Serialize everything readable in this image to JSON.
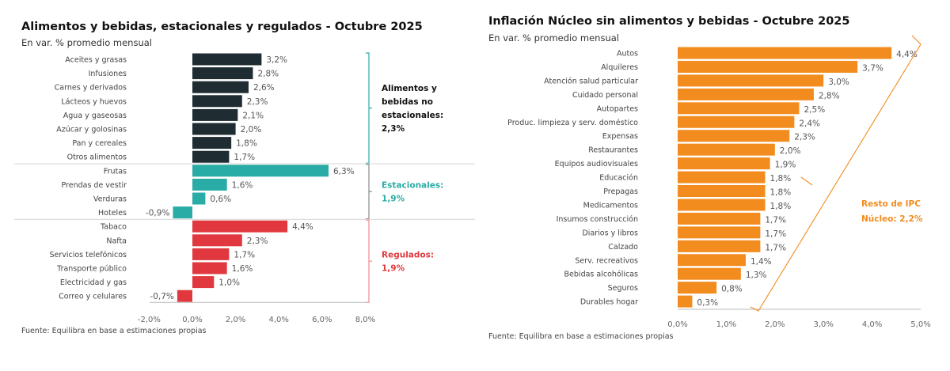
{
  "chart_data": [
    {
      "type": "bar",
      "orientation": "horizontal",
      "title": "Alimentos y bebidas, estacionales y regulados - Octubre 2025",
      "subtitle": "En var. % promedio mensual",
      "source": "Fuente: Equilibra en base a estimaciones propias",
      "xlim": [
        -2,
        8
      ],
      "xticks": [
        "-2,0%",
        "0,0%",
        "2,0%",
        "4,0%",
        "6,0%",
        "8,0%"
      ],
      "groups": [
        {
          "label_lines": [
            "Alimentos y",
            "bebidas no",
            "estacionales:",
            "2,3%"
          ],
          "color": "#1f2d33",
          "annotation_color": "#111111",
          "bracket_color": "#2aaca6",
          "categories": [
            "Aceites y grasas",
            "Infusiones",
            "Carnes y derivados",
            "Lácteos y huevos",
            "Agua y gaseosas",
            "Azúcar y golosinas",
            "Pan y cereales",
            "Otros alimentos"
          ],
          "values": [
            3.2,
            2.8,
            2.6,
            2.3,
            2.1,
            2.0,
            1.8,
            1.7
          ],
          "labels": [
            "3,2%",
            "2,8%",
            "2,6%",
            "2,3%",
            "2,1%",
            "2,0%",
            "1,8%",
            "1,7%"
          ]
        },
        {
          "label_lines": [
            "Estacionales:",
            "1,9%"
          ],
          "color": "#2aaca6",
          "annotation_color": "#2aaca6",
          "bracket_color": "#888888",
          "categories": [
            "Frutas",
            "Prendas de vestir",
            "Verduras",
            "Hoteles"
          ],
          "values": [
            6.3,
            1.6,
            0.6,
            -0.9
          ],
          "labels": [
            "6,3%",
            "1,6%",
            "0,6%",
            "-0,9%"
          ]
        },
        {
          "label_lines": [
            "Regulados:",
            "1,9%"
          ],
          "color": "#e0383e",
          "annotation_color": "#e0383e",
          "bracket_color": "#f08a8c",
          "categories": [
            "Tabaco",
            "Nafta",
            "Servicios telefónicos",
            "Transporte público",
            "Electricidad y gas",
            "Correo y celulares"
          ],
          "values": [
            4.4,
            2.3,
            1.7,
            1.6,
            1.0,
            -0.7
          ],
          "labels": [
            "4,4%",
            "2,3%",
            "1,7%",
            "1,6%",
            "1,0%",
            "-0,7%"
          ]
        }
      ]
    },
    {
      "type": "bar",
      "orientation": "horizontal",
      "title": "Inflación Núcleo sin alimentos y bebidas - Octubre 2025",
      "subtitle": "En var. % promedio mensual",
      "source": "Fuente: Equilibra en base a estimaciones propias",
      "xlim": [
        0,
        5
      ],
      "xticks": [
        "0,0%",
        "1,0%",
        "2,0%",
        "3,0%",
        "4,0%",
        "5,0%"
      ],
      "color": "#f28c1e",
      "annotation": [
        "Resto de IPC",
        "Núcleo: 2,2%"
      ],
      "categories": [
        "Autos",
        "Alquileres",
        "Atención salud particular",
        "Cuidado personal",
        "Autopartes",
        "Produc. limpieza y serv. doméstico",
        "Expensas",
        "Restaurantes",
        "Equipos audiovisuales",
        "Educación",
        "Prepagas",
        "Medicamentos",
        "Insumos construcción",
        "Diarios y libros",
        "Calzado",
        "Serv. recreativos",
        "Bebidas alcohólicas",
        "Seguros",
        "Durables hogar"
      ],
      "values": [
        4.4,
        3.7,
        3.0,
        2.8,
        2.5,
        2.4,
        2.3,
        2.0,
        1.9,
        1.8,
        1.8,
        1.8,
        1.7,
        1.7,
        1.7,
        1.4,
        1.3,
        0.8,
        0.3
      ],
      "labels": [
        "4,4%",
        "3,7%",
        "3,0%",
        "2,8%",
        "2,5%",
        "2,4%",
        "2,3%",
        "2,0%",
        "1,9%",
        "1,8%",
        "1,8%",
        "1,8%",
        "1,7%",
        "1,7%",
        "1,7%",
        "1,4%",
        "1,3%",
        "0,8%",
        "0,3%"
      ]
    }
  ]
}
